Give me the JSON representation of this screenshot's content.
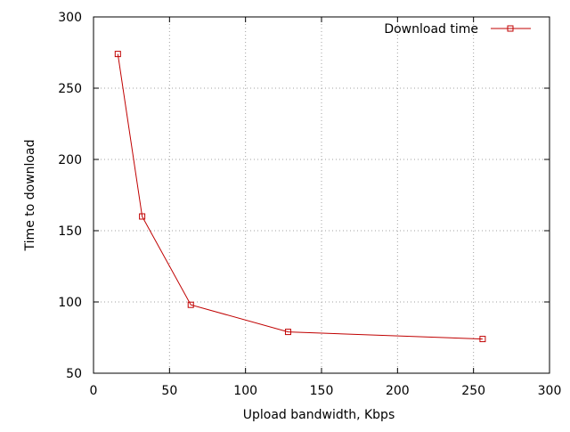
{
  "chart_data": {
    "type": "line",
    "xlabel": "Upload bandwidth, Kbps",
    "ylabel": "Time to download",
    "xlim": [
      0,
      300
    ],
    "ylim": [
      50,
      300
    ],
    "xticks": [
      0,
      50,
      100,
      150,
      200,
      250,
      300
    ],
    "yticks": [
      50,
      100,
      150,
      200,
      250,
      300
    ],
    "grid": true,
    "legend_position": "top-right",
    "series": [
      {
        "name": "Download time",
        "color": "#c00000",
        "marker": "square",
        "x": [
          16,
          32,
          64,
          128,
          256
        ],
        "y": [
          274,
          160,
          98,
          79,
          74
        ]
      }
    ]
  }
}
